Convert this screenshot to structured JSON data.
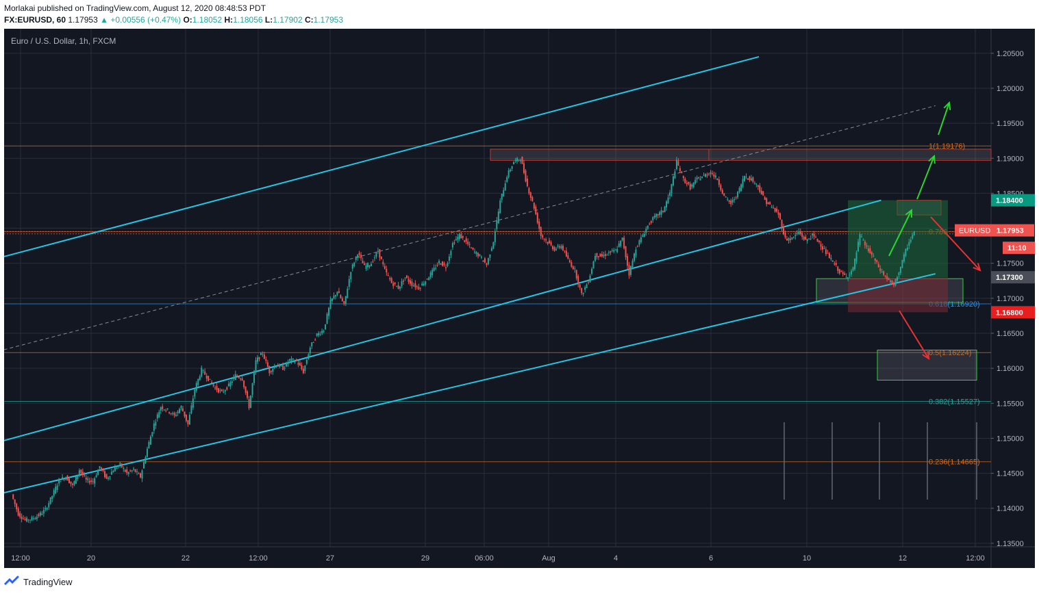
{
  "header": {
    "publisher_line": "Morlakai published on TradingView.com, August 12, 2020 08:48:53 PDT",
    "symbol": "FX:EURUSD, 60",
    "last": "1.17953",
    "change": "+0.00556 (+0.47%)",
    "o_label": "O:",
    "o": "1.18052",
    "h_label": "H:",
    "h": "1.18056",
    "l_label": "L:",
    "l": "1.17902",
    "c_label": "C:",
    "c": "1.17953"
  },
  "chart_title": "Euro / U.S. Dollar, 1h, FXCM",
  "footer": {
    "brand": "TradingView"
  },
  "colors": {
    "background": "#131722",
    "grid": "#2a2e39",
    "up": "#26a69a",
    "down": "#ef5350",
    "channel": "#22c7e6",
    "fib": "#d66d1a",
    "fib_teal": "#2196f3",
    "arrow_up": "#2bd433",
    "arrow_down": "#e83333"
  },
  "chart_data": {
    "type": "candlestick",
    "title": "Euro / U.S. Dollar, 1h, FXCM",
    "ylim": [
      1.1345,
      1.2085
    ],
    "y_ticks": [
      "1.20500",
      "1.20000",
      "1.19500",
      "1.19000",
      "1.18500",
      "1.18000",
      "1.17500",
      "1.17000",
      "1.16500",
      "1.16000",
      "1.15500",
      "1.15000",
      "1.14500",
      "1.14000",
      "1.13500"
    ],
    "x_ticks": [
      "12:00",
      "20",
      "22",
      "12:00",
      "27",
      "29",
      "06:00",
      "Aug",
      "4",
      "6",
      "10",
      "12",
      "12:00"
    ],
    "path": [
      [
        0,
        1.142
      ],
      [
        1,
        1.1392
      ],
      [
        2,
        1.1383
      ],
      [
        3,
        1.1385
      ],
      [
        4,
        1.139
      ],
      [
        5,
        1.1398
      ],
      [
        6,
        1.1418
      ],
      [
        7,
        1.144
      ],
      [
        8,
        1.1445
      ],
      [
        9,
        1.1432
      ],
      [
        10,
        1.1455
      ],
      [
        11,
        1.144
      ],
      [
        12,
        1.1438
      ],
      [
        13,
        1.146
      ],
      [
        14,
        1.1442
      ],
      [
        15,
        1.1455
      ],
      [
        16,
        1.1462
      ],
      [
        17,
        1.145
      ],
      [
        18,
        1.1455
      ],
      [
        19,
        1.1445
      ],
      [
        20,
        1.1485
      ],
      [
        21,
        1.152
      ],
      [
        22,
        1.1545
      ],
      [
        23,
        1.154
      ],
      [
        24,
        1.1532
      ],
      [
        25,
        1.1545
      ],
      [
        26,
        1.152
      ],
      [
        27,
        1.157
      ],
      [
        28,
        1.1598
      ],
      [
        29,
        1.1585
      ],
      [
        30,
        1.1572
      ],
      [
        31,
        1.1565
      ],
      [
        32,
        1.1575
      ],
      [
        33,
        1.159
      ],
      [
        34,
        1.1585
      ],
      [
        35,
        1.1545
      ],
      [
        36,
        1.161
      ],
      [
        37,
        1.1622
      ],
      [
        38,
        1.1595
      ],
      [
        39,
        1.1605
      ],
      [
        40,
        1.16
      ],
      [
        41,
        1.1612
      ],
      [
        42,
        1.161
      ],
      [
        43,
        1.1595
      ],
      [
        44,
        1.163
      ],
      [
        45,
        1.1648
      ],
      [
        46,
        1.1655
      ],
      [
        47,
        1.1695
      ],
      [
        48,
        1.171
      ],
      [
        49,
        1.169
      ],
      [
        50,
        1.174
      ],
      [
        51,
        1.1765
      ],
      [
        52,
        1.1745
      ],
      [
        53,
        1.175
      ],
      [
        54,
        1.1768
      ],
      [
        55,
        1.174
      ],
      [
        56,
        1.1722
      ],
      [
        57,
        1.1715
      ],
      [
        58,
        1.173
      ],
      [
        59,
        1.172
      ],
      [
        60,
        1.1715
      ],
      [
        61,
        1.1725
      ],
      [
        62,
        1.1738
      ],
      [
        63,
        1.1752
      ],
      [
        64,
        1.1745
      ],
      [
        65,
        1.1778
      ],
      [
        66,
        1.179
      ],
      [
        67,
        1.178
      ],
      [
        68,
        1.1768
      ],
      [
        69,
        1.176
      ],
      [
        70,
        1.1748
      ],
      [
        71,
        1.1782
      ],
      [
        72,
        1.1838
      ],
      [
        73,
        1.1875
      ],
      [
        74,
        1.1895
      ],
      [
        75,
        1.19
      ],
      [
        76,
        1.186
      ],
      [
        77,
        1.183
      ],
      [
        78,
        1.179
      ],
      [
        79,
        1.178
      ],
      [
        80,
        1.177
      ],
      [
        81,
        1.1775
      ],
      [
        82,
        1.1755
      ],
      [
        83,
        1.174
      ],
      [
        84,
        1.1705
      ],
      [
        85,
        1.1725
      ],
      [
        86,
        1.1762
      ],
      [
        87,
        1.176
      ],
      [
        88,
        1.1765
      ],
      [
        89,
        1.1768
      ],
      [
        90,
        1.1785
      ],
      [
        91,
        1.1735
      ],
      [
        92,
        1.1772
      ],
      [
        93,
        1.179
      ],
      [
        94,
        1.1808
      ],
      [
        95,
        1.1818
      ],
      [
        96,
        1.1825
      ],
      [
        97,
        1.185
      ],
      [
        98,
        1.1895
      ],
      [
        99,
        1.187
      ],
      [
        100,
        1.1858
      ],
      [
        101,
        1.187
      ],
      [
        102,
        1.1875
      ],
      [
        103,
        1.188
      ],
      [
        104,
        1.187
      ],
      [
        105,
        1.1845
      ],
      [
        106,
        1.1835
      ],
      [
        107,
        1.185
      ],
      [
        108,
        1.1875
      ],
      [
        109,
        1.187
      ],
      [
        110,
        1.186
      ],
      [
        111,
        1.184
      ],
      [
        112,
        1.183
      ],
      [
        113,
        1.182
      ],
      [
        114,
        1.1785
      ],
      [
        115,
        1.1785
      ],
      [
        116,
        1.1795
      ],
      [
        117,
        1.1782
      ],
      [
        118,
        1.179
      ],
      [
        119,
        1.178
      ],
      [
        120,
        1.1765
      ],
      [
        121,
        1.1752
      ],
      [
        122,
        1.1738
      ],
      [
        123,
        1.173
      ],
      [
        124,
        1.1742
      ],
      [
        125,
        1.179
      ],
      [
        126,
        1.1772
      ],
      [
        127,
        1.1758
      ],
      [
        128,
        1.174
      ],
      [
        129,
        1.1728
      ],
      [
        130,
        1.1718
      ],
      [
        131,
        1.1745
      ],
      [
        132,
        1.1775
      ],
      [
        133,
        1.1795
      ]
    ],
    "horizontal_levels": [
      {
        "label": "1(1.19176)",
        "value": 1.19176,
        "color": "#d66d1a"
      },
      {
        "label": "0.786",
        "value": 1.1795,
        "color": "#d66d1a"
      },
      {
        "label": "0.618(1.16920)",
        "value": 1.1692,
        "color": "#2196f3"
      },
      {
        "label": "0.5(1.16224)",
        "value": 1.16224,
        "color": "#d66d1a"
      },
      {
        "label": "0.382(1.15527)",
        "value": 1.15527,
        "color": "#26a69a"
      },
      {
        "label": "0.236(1.14665)",
        "value": 1.14665,
        "color": "#d66d1a"
      }
    ],
    "price_tags": [
      {
        "text": "1.18400",
        "value": 1.184,
        "color": "#089981",
        "text_color": "#ffffff"
      },
      {
        "text": "EURUSD",
        "value": 1.1797,
        "color": "#ef5350",
        "text_color": "#ffffff",
        "with_value": "1.17953"
      },
      {
        "text": "11:10",
        "value": 1.1772,
        "color": "#ef5350",
        "text_color": "#ffffff"
      },
      {
        "text": "1.17300",
        "value": 1.173,
        "color": "#4a4e58",
        "text_color": "#ffffff"
      },
      {
        "text": "1.16800",
        "value": 1.168,
        "color": "#e81f1f",
        "text_color": "#ffffff"
      }
    ],
    "channels": [
      {
        "name": "upper",
        "from": [
          1.1755,
          -3
        ],
        "to": [
          1.2045,
          110
        ]
      },
      {
        "name": "middle",
        "from": [
          1.1492,
          -3
        ],
        "to": [
          1.184,
          128
        ]
      },
      {
        "name": "lower",
        "from": [
          1.1368,
          -25
        ],
        "to": [
          1.1735,
          136
        ]
      }
    ],
    "mid_dashed": {
      "from": [
        1.1622,
        -3
      ],
      "to": [
        1.1975,
        136
      ]
    },
    "zones": [
      {
        "name": "resistance-zone",
        "top": 1.1913,
        "bottom": 1.1897,
        "color": "#c0392b"
      },
      {
        "name": "target-zone-up",
        "top": 1.184,
        "bottom": 1.1819,
        "color": "#c0392b"
      },
      {
        "name": "support-zone",
        "top": 1.1728,
        "bottom": 1.1694,
        "color": "#2bd433"
      },
      {
        "name": "target-zone-down",
        "top": 1.1626,
        "bottom": 1.1583,
        "color": "#2bd433"
      },
      {
        "name": "long-position-profit",
        "top": 1.184,
        "bottom": 1.173,
        "color": "#1e6b3a"
      },
      {
        "name": "long-position-loss",
        "top": 1.173,
        "bottom": 1.168,
        "color": "#7a2a33"
      }
    ]
  }
}
